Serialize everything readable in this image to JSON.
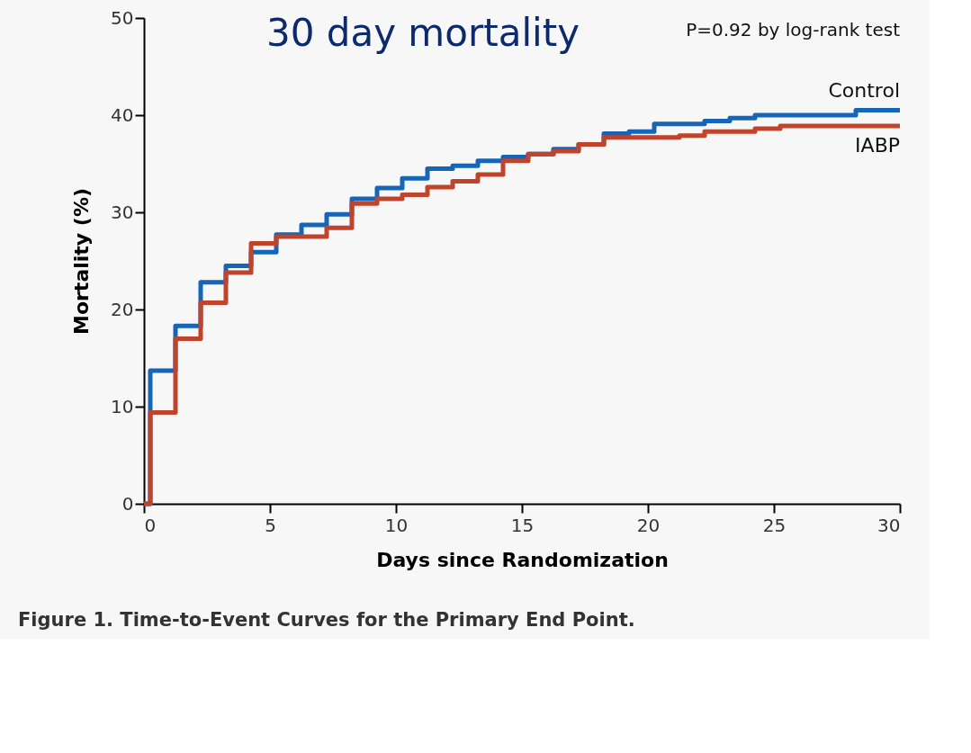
{
  "chart_data": {
    "type": "step",
    "title": "30 day mortality",
    "xlabel": "Days since Randomization",
    "ylabel": "Mortality (%)",
    "annotations": [
      "P=0.92 by log-rank test",
      "Figure 1. Time-to-Event Curves for the Primary End Point."
    ],
    "xlim": [
      0,
      30
    ],
    "ylim": [
      0,
      50
    ],
    "xticks": [
      0,
      5,
      10,
      15,
      20,
      25,
      30
    ],
    "yticks": [
      0,
      10,
      20,
      30,
      40,
      50
    ],
    "grid": false,
    "line_style": "solid",
    "marker": "none",
    "series": [
      {
        "name": "Control",
        "color": "#1565b8",
        "x": [
          0,
          0.25,
          1.25,
          2.25,
          3.25,
          4.25,
          5.25,
          6.25,
          7.25,
          8.25,
          9.25,
          10.25,
          11.25,
          12.25,
          13.25,
          14.25,
          15.25,
          16.25,
          17.25,
          18.25,
          19.25,
          20.25,
          22.25,
          23.25,
          24.25,
          28.25,
          30
        ],
        "values": [
          0,
          13.7,
          18.3,
          22.8,
          24.5,
          25.9,
          27.7,
          28.7,
          29.8,
          31.4,
          32.5,
          33.5,
          34.5,
          34.8,
          35.3,
          35.7,
          36.0,
          36.5,
          37.0,
          38.1,
          38.3,
          39.1,
          39.4,
          39.7,
          40.0,
          40.5,
          40.5
        ]
      },
      {
        "name": "IABP",
        "color": "#c0432b",
        "x": [
          0,
          0.25,
          1.25,
          2.25,
          3.25,
          4.25,
          5.25,
          7.25,
          8.25,
          9.25,
          10.25,
          11.25,
          12.25,
          13.25,
          14.25,
          15.25,
          16.25,
          17.25,
          18.25,
          21.25,
          22.25,
          24.25,
          25.25,
          30
        ],
        "values": [
          0,
          9.4,
          17.0,
          20.7,
          23.8,
          26.8,
          27.5,
          28.4,
          30.9,
          31.4,
          31.8,
          32.6,
          33.2,
          33.9,
          35.3,
          36.0,
          36.3,
          37.0,
          37.7,
          37.9,
          38.3,
          38.6,
          38.9,
          38.9
        ]
      }
    ]
  }
}
